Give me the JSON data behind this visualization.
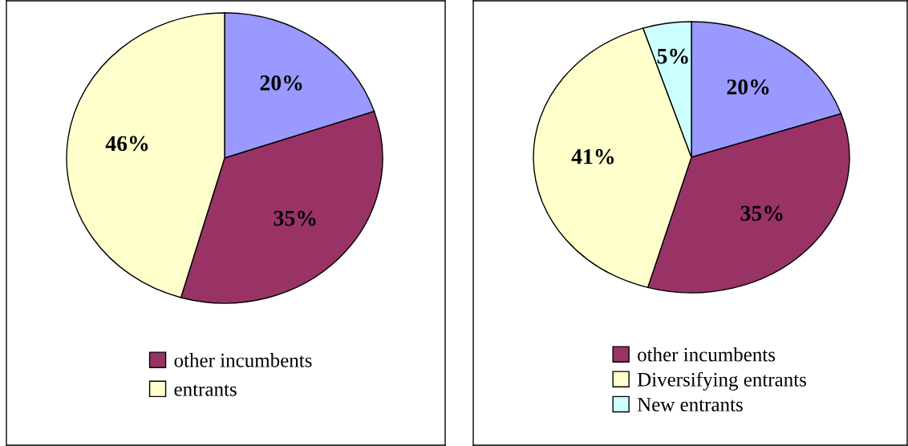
{
  "chart_data": [
    {
      "type": "pie",
      "categories": [
        null,
        "other incumbents",
        "entrants"
      ],
      "values": [
        20,
        35,
        46
      ],
      "colors": [
        "#9999ff",
        "#993366",
        "#ffffcc"
      ],
      "value_labels": [
        "20%",
        "35%",
        "46%"
      ],
      "legend": "bottom"
    },
    {
      "type": "pie",
      "categories": [
        null,
        "other incumbents",
        "Diversifying entrants",
        "New entrants"
      ],
      "values": [
        20,
        35,
        41,
        5
      ],
      "colors": [
        "#9999ff",
        "#993366",
        "#ffffcc",
        "#ccffff"
      ],
      "value_labels": [
        "20%",
        "35%",
        "41%",
        "5%"
      ],
      "legend": "bottom"
    }
  ]
}
